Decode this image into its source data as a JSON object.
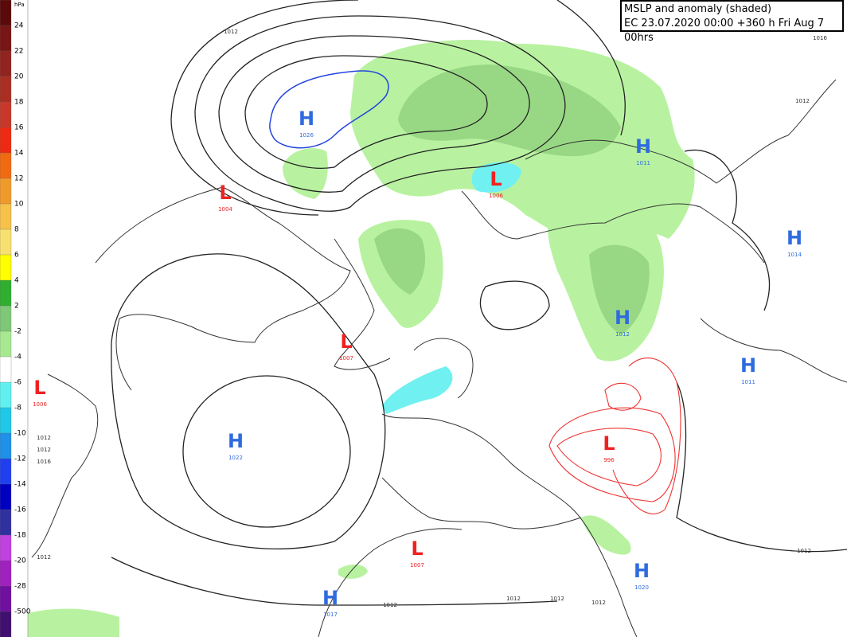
{
  "header": {
    "title": "MSLP and anomaly (shaded)",
    "subtitle": "EC 23.07.2020 00:00 +360 h Fri Aug 7 00hrs"
  },
  "colorbar": {
    "unit": "hPa",
    "labels": [
      "24",
      "22",
      "20",
      "18",
      "16",
      "14",
      "12",
      "10",
      "8",
      "6",
      "4",
      "2",
      "-2",
      "-4",
      "-6",
      "-8",
      "-10",
      "-12",
      "-14",
      "-16",
      "-18",
      "-20",
      "-28",
      "-500"
    ]
  },
  "centers": [
    {
      "kind": "H",
      "value": "1026"
    },
    {
      "kind": "L",
      "value": "1004"
    },
    {
      "kind": "L",
      "value": "1006"
    },
    {
      "kind": "H",
      "value": "1011"
    },
    {
      "kind": "H",
      "value": "1014"
    },
    {
      "kind": "H",
      "value": "1012"
    },
    {
      "kind": "L",
      "value": "1007"
    },
    {
      "kind": "H",
      "value": "1011"
    },
    {
      "kind": "L",
      "value": "1006"
    },
    {
      "kind": "H",
      "value": "1022"
    },
    {
      "kind": "L",
      "value": "996"
    },
    {
      "kind": "L",
      "value": "1007"
    },
    {
      "kind": "H",
      "value": "1020"
    },
    {
      "kind": "H",
      "value": "1017"
    }
  ],
  "isobar_labels": [
    "1012",
    "1016",
    "1012",
    "1012",
    "1012",
    "1016",
    "1012",
    "1012",
    "1012",
    "1012",
    "1012",
    "1012"
  ]
}
